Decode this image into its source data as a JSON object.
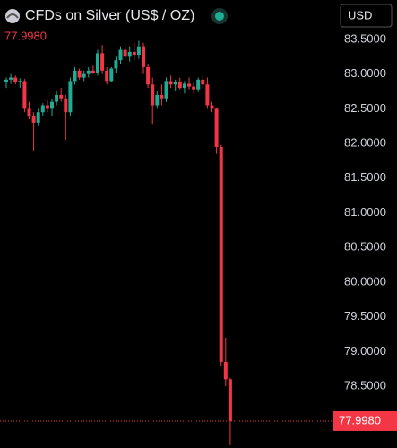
{
  "header": {
    "title": "CFDs on Silver (US$ / OZ)",
    "currency": "USD"
  },
  "chart_data": {
    "type": "candlestick",
    "up_color": "#22ab94",
    "down_color": "#f23645",
    "open": [
      82.88,
      82.92,
      82.95,
      82.88,
      82.9,
      82.5,
      82.4,
      82.3,
      82.45,
      82.55,
      82.5,
      82.6,
      82.7,
      82.65,
      82.45,
      82.9,
      83.05,
      82.95,
      83.0,
      83.05,
      83.02,
      83.3,
      83.05,
      82.9,
      83.08,
      83.2,
      83.35,
      83.25,
      83.32,
      83.28,
      83.4,
      83.1,
      82.85,
      82.55,
      82.7,
      82.65,
      82.9,
      82.85,
      82.88,
      82.8,
      82.86,
      82.82,
      82.78,
      82.92,
      82.85,
      82.55,
      82.5,
      81.95,
      78.85,
      78.6
    ],
    "high": [
      82.95,
      83.0,
      82.98,
      82.94,
      82.93,
      82.6,
      82.45,
      82.5,
      82.58,
      82.62,
      82.65,
      82.75,
      82.8,
      82.7,
      82.95,
      83.1,
      83.08,
      83.05,
      83.1,
      83.12,
      83.35,
      83.42,
      83.1,
      83.1,
      83.25,
      83.4,
      83.45,
      83.4,
      83.45,
      83.48,
      83.45,
      83.15,
      82.95,
      82.75,
      82.85,
      82.95,
      82.98,
      82.92,
      82.95,
      82.9,
      82.95,
      82.88,
      82.95,
      82.98,
      82.95,
      82.6,
      82.52,
      81.98,
      79.2,
      78.62
    ],
    "low": [
      82.8,
      82.86,
      82.85,
      82.8,
      82.45,
      82.35,
      81.9,
      82.25,
      82.4,
      82.45,
      82.4,
      82.55,
      82.6,
      82.05,
      82.4,
      82.85,
      82.92,
      82.9,
      82.95,
      83.0,
      82.98,
      83.0,
      82.85,
      82.88,
      83.02,
      83.15,
      83.2,
      83.18,
      83.2,
      83.22,
      83.0,
      82.8,
      82.28,
      82.5,
      82.55,
      82.6,
      82.8,
      82.75,
      82.78,
      82.72,
      82.78,
      82.72,
      82.74,
      82.8,
      82.5,
      82.45,
      81.85,
      78.8,
      78.5,
      77.65
    ],
    "close": [
      82.92,
      82.95,
      82.88,
      82.9,
      82.5,
      82.4,
      82.3,
      82.45,
      82.55,
      82.5,
      82.6,
      82.7,
      82.65,
      82.45,
      82.9,
      83.05,
      82.95,
      83.0,
      83.05,
      83.02,
      83.3,
      83.05,
      82.9,
      83.08,
      83.2,
      83.35,
      83.25,
      83.32,
      83.28,
      83.4,
      83.1,
      82.85,
      82.55,
      82.7,
      82.65,
      82.9,
      82.85,
      82.88,
      82.8,
      82.86,
      82.82,
      82.78,
      82.92,
      82.85,
      82.55,
      82.5,
      81.95,
      78.85,
      78.6,
      77.998
    ],
    "last_price": {
      "value": 77.998,
      "label": "77.9980"
    },
    "ylim": [
      77.61,
      83.68
    ],
    "yticks": [
      {
        "value": 83.5,
        "label": "83.5000"
      },
      {
        "value": 83,
        "label": "83.0000"
      },
      {
        "value": 82.5,
        "label": "82.5000"
      },
      {
        "value": 82,
        "label": "82.0000"
      },
      {
        "value": 81.5,
        "label": "81.5000"
      },
      {
        "value": 81,
        "label": "81.0000"
      },
      {
        "value": 80.5,
        "label": "80.5000"
      },
      {
        "value": 80,
        "label": "80.0000"
      },
      {
        "value": 79.5,
        "label": "79.5000"
      },
      {
        "value": 79,
        "label": "79.0000"
      },
      {
        "value": 78.5,
        "label": "78.5000"
      }
    ],
    "grid": false
  }
}
